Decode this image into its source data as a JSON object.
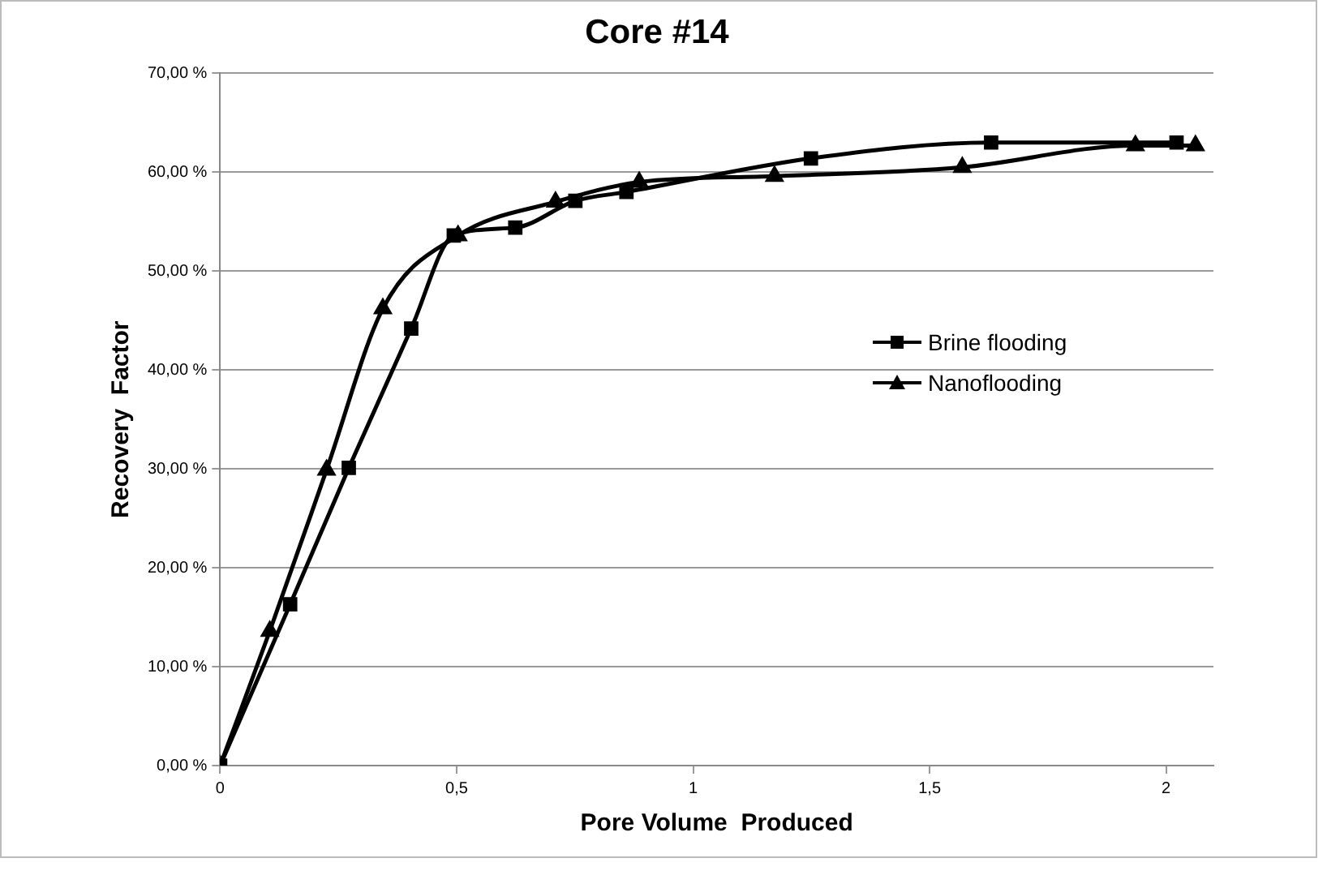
{
  "chart_data": {
    "type": "line",
    "title": "Core #14",
    "xlabel": "Pore Volume  Produced",
    "ylabel": "Recovery  Factor",
    "xlim": [
      0,
      2.1
    ],
    "xticks": [
      0,
      {
        "value": 0.5,
        "label": "0,5"
      },
      1,
      {
        "value": 1.5,
        "label": "1,5"
      },
      2
    ],
    "ylim": [
      0,
      70
    ],
    "yticks": [
      {
        "value": 0,
        "label": "0,00 %"
      },
      {
        "value": 10,
        "label": "10,00 %"
      },
      {
        "value": 20,
        "label": "20,00 %"
      },
      {
        "value": 30,
        "label": "30,00 %"
      },
      {
        "value": 40,
        "label": "40,00 %"
      },
      {
        "value": 50,
        "label": "50,00 %"
      },
      {
        "value": 60,
        "label": "60,00 %"
      },
      {
        "value": 70,
        "label": "70,00 %"
      }
    ],
    "grid": "y",
    "legend": "right",
    "line_style": "solid",
    "series": [
      {
        "name": "Brine flooding",
        "color": "#000000",
        "marker": "square",
        "x": [
          0,
          0.148,
          0.272,
          0.404,
          0.494,
          0.624,
          0.751,
          0.859,
          1.249,
          1.63,
          2.022
        ],
        "values": [
          0,
          16.3,
          30.1,
          44.2,
          53.6,
          54.4,
          57.1,
          58,
          61.4,
          63,
          63
        ]
      },
      {
        "name": "Nanoflooding",
        "color": "#000000",
        "marker": "triangle",
        "x": [
          0,
          0.105,
          0.225,
          0.344,
          0.503,
          0.709,
          0.886,
          1.172,
          1.569,
          1.935,
          2.062
        ],
        "values": [
          0,
          13.6,
          29.9,
          46.2,
          53.6,
          57,
          59,
          59.6,
          60.5,
          62.7,
          62.7
        ]
      }
    ]
  }
}
